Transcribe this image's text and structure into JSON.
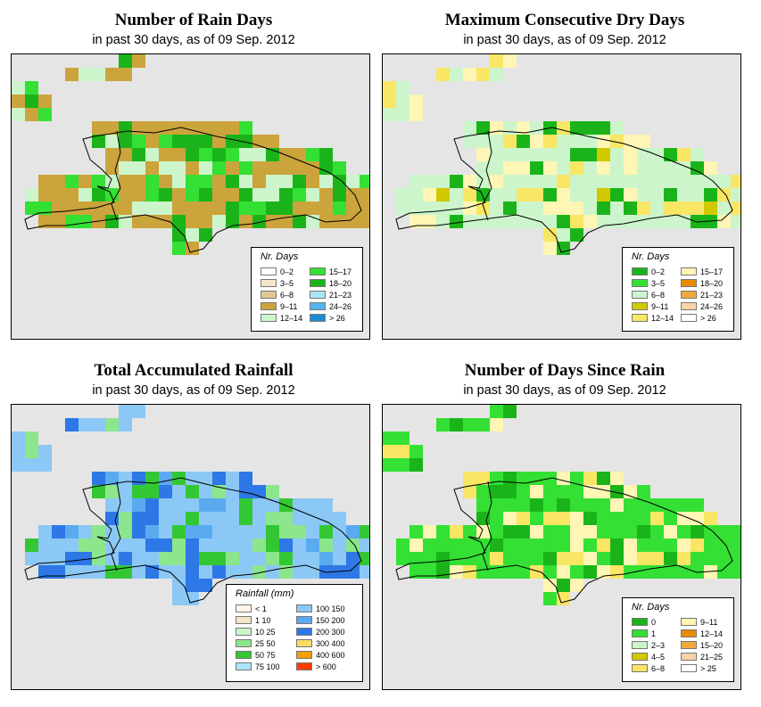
{
  "panels": [
    {
      "title": "Number of Rain Days",
      "subtitle": "in past 30 days, as of  09 Sep. 2012",
      "legend_title": "Nr. Days",
      "legend": [
        {
          "label": "0–2",
          "color": "#ffffff"
        },
        {
          "label": "3–5",
          "color": "#f5e6c8"
        },
        {
          "label": "6–8",
          "color": "#e2c891"
        },
        {
          "label": "9–11",
          "color": "#cca43c"
        },
        {
          "label": "12–14",
          "color": "#ccf5cc"
        },
        {
          "label": "15–17",
          "color": "#33e033"
        },
        {
          "label": "18–20",
          "color": "#1ab41a"
        },
        {
          "label": "21–23",
          "color": "#aae6f5"
        },
        {
          "label": "24–26",
          "color": "#5ab4f0"
        },
        {
          "label": "> 26",
          "color": "#1e8cd2"
        }
      ]
    },
    {
      "title": "Maximum Consecutive Dry Days",
      "subtitle": "in past 30 days, as of  09 Sep. 2012",
      "legend_title": "Nr. Days",
      "legend": [
        {
          "label": "0–2",
          "color": "#1ab41a"
        },
        {
          "label": "3–5",
          "color": "#33e033"
        },
        {
          "label": "6–8",
          "color": "#ccf5cc"
        },
        {
          "label": "9–11",
          "color": "#d2c800"
        },
        {
          "label": "12–14",
          "color": "#f8e664"
        },
        {
          "label": "15–17",
          "color": "#fff5b4"
        },
        {
          "label": "18–20",
          "color": "#e68c00"
        },
        {
          "label": "21–23",
          "color": "#f0aa3c"
        },
        {
          "label": "24–26",
          "color": "#fad2aa"
        },
        {
          "label": "> 26",
          "color": "#ffffff"
        }
      ]
    },
    {
      "title": "Total Accumulated Rainfall",
      "subtitle": "in past 30 days, as of  09 Sep. 2012",
      "legend_title": "Rainfall (mm)",
      "legend": [
        {
          "label": "< 1",
          "color": "#fff5e6"
        },
        {
          "label": "1    10",
          "color": "#f5e6c8"
        },
        {
          "label": "10    25",
          "color": "#ccf5cc"
        },
        {
          "label": "25    50",
          "color": "#8ce68c"
        },
        {
          "label": "50    75",
          "color": "#33c833"
        },
        {
          "label": "75    100",
          "color": "#aae6f5"
        },
        {
          "label": "100    150",
          "color": "#8cc8f5"
        },
        {
          "label": "150    200",
          "color": "#5aaaf0"
        },
        {
          "label": "200    300",
          "color": "#2d78e6"
        },
        {
          "label": "300    400",
          "color": "#f8dc64"
        },
        {
          "label": "400    600",
          "color": "#f0a000"
        },
        {
          "label": "> 600",
          "color": "#ff3c00"
        }
      ]
    },
    {
      "title": "Number of Days Since Rain",
      "subtitle": "in past 30 days, as of  09 Sep. 2012",
      "legend_title": "Nr. Days",
      "legend": [
        {
          "label": "0",
          "color": "#1ab41a"
        },
        {
          "label": "1",
          "color": "#33e033"
        },
        {
          "label": "2–3",
          "color": "#ccf5cc"
        },
        {
          "label": "4–5",
          "color": "#d2c800"
        },
        {
          "label": "6–8",
          "color": "#f8e664"
        },
        {
          "label": "9–11",
          "color": "#fff5b4"
        },
        {
          "label": "12–14",
          "color": "#e68c00"
        },
        {
          "label": "15–20",
          "color": "#f0aa3c"
        },
        {
          "label": "21–25",
          "color": "#fad2aa"
        },
        {
          "label": "> 25",
          "color": "#ffffff"
        }
      ]
    }
  ]
}
